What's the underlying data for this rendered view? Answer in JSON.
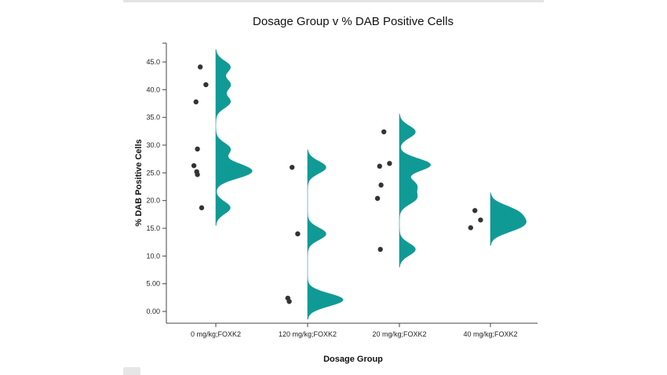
{
  "chart_data": {
    "type": "raincloud",
    "title": "Dosage Group v % DAB Positive Cells",
    "xlabel": "Dosage Group",
    "ylabel": "% DAB Positive Cells",
    "ylim": [
      -2,
      48
    ],
    "yticks": [
      "0.00",
      "5.00",
      "10.0",
      "15.0",
      "20.0",
      "25.0",
      "30.0",
      "35.0",
      "40.0",
      "45.0"
    ],
    "ytick_values": [
      0,
      5,
      10,
      15,
      20,
      25,
      30,
      35,
      40,
      45
    ],
    "categories": [
      "0 mg/kg;FOXK2",
      "120 mg/kg;FOXK2",
      "20 mg/kg;FOXK2",
      "40 mg/kg;FOXK2"
    ],
    "points": [
      [
        44.1,
        40.9,
        37.8,
        29.3,
        26.3,
        25.2,
        24.7,
        18.7
      ],
      [
        26.0,
        14.0,
        2.4,
        1.8
      ],
      [
        32.4,
        26.7,
        26.2,
        22.8,
        20.4,
        11.2
      ],
      [
        18.2,
        16.5,
        15.1
      ]
    ],
    "grid": false,
    "colors": {
      "violin": "#109a96",
      "point": "#333333"
    }
  }
}
